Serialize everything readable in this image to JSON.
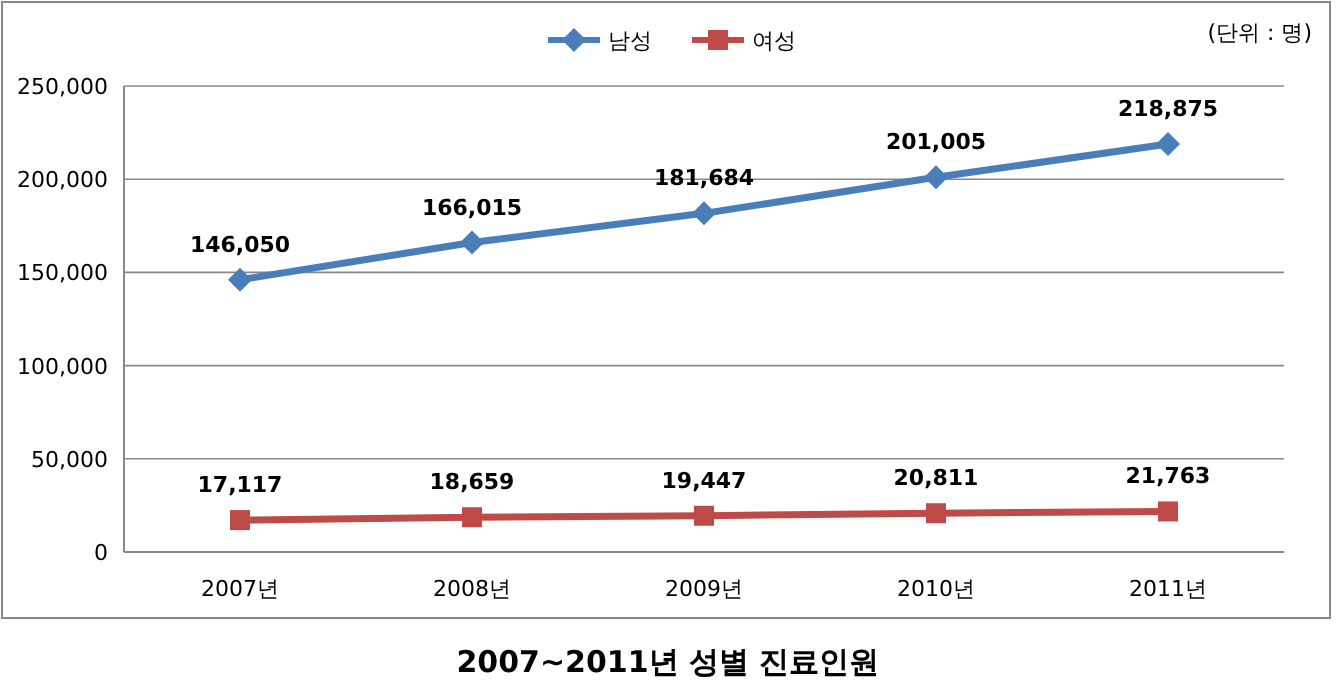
{
  "chart_data": {
    "type": "line",
    "title": "2007~2011년 성별 진료인원",
    "annotations": [
      "(단위 : 명)"
    ],
    "categories": [
      "2007년",
      "2008년",
      "2009년",
      "2010년",
      "2011년"
    ],
    "series": [
      {
        "name": "남성",
        "color": "#4a7ebb",
        "marker": "diamond",
        "values": [
          146050,
          166015,
          181684,
          201005,
          218875
        ],
        "value_labels": [
          "146,050",
          "166,015",
          "181,684",
          "201,005",
          "218,875"
        ]
      },
      {
        "name": "여성",
        "color": "#be4b48",
        "marker": "square",
        "values": [
          17117,
          18659,
          19447,
          20811,
          21763
        ],
        "value_labels": [
          "17,117",
          "18,659",
          "19,447",
          "20,811",
          "21,763"
        ]
      }
    ],
    "ylim": [
      0,
      250000
    ],
    "yticks": [
      {
        "value": 0,
        "label": "0"
      },
      {
        "value": 50000,
        "label": "50,000"
      },
      {
        "value": 100000,
        "label": "100,000"
      },
      {
        "value": 150000,
        "label": "150,000"
      },
      {
        "value": 200000,
        "label": "200,000"
      },
      {
        "value": 250000,
        "label": "250,000"
      }
    ],
    "grid": "y",
    "legend": "top"
  }
}
